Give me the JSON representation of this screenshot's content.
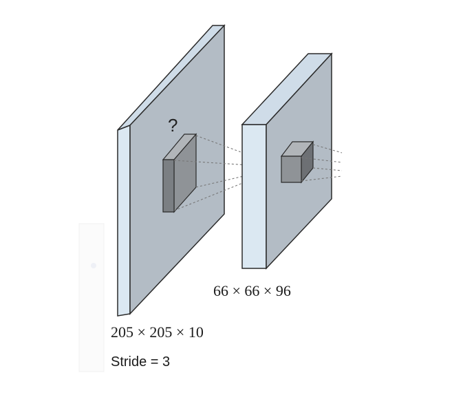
{
  "diagram": {
    "layer1": {
      "dimensions": "205 × 205 × 10",
      "stride": "Stride = 3",
      "unknown_marker": "?"
    },
    "layer2": {
      "dimensions": "66 × 66 × 96"
    },
    "colors": {
      "face_front": "#b3bcc5",
      "face_edge": "#dbe8f2",
      "kernel_front": "#8f9397",
      "kernel_side": "#6d7074",
      "kernel_top": "#b1b5b9",
      "stroke": "#2a2a2a",
      "projection": "#777777"
    }
  }
}
